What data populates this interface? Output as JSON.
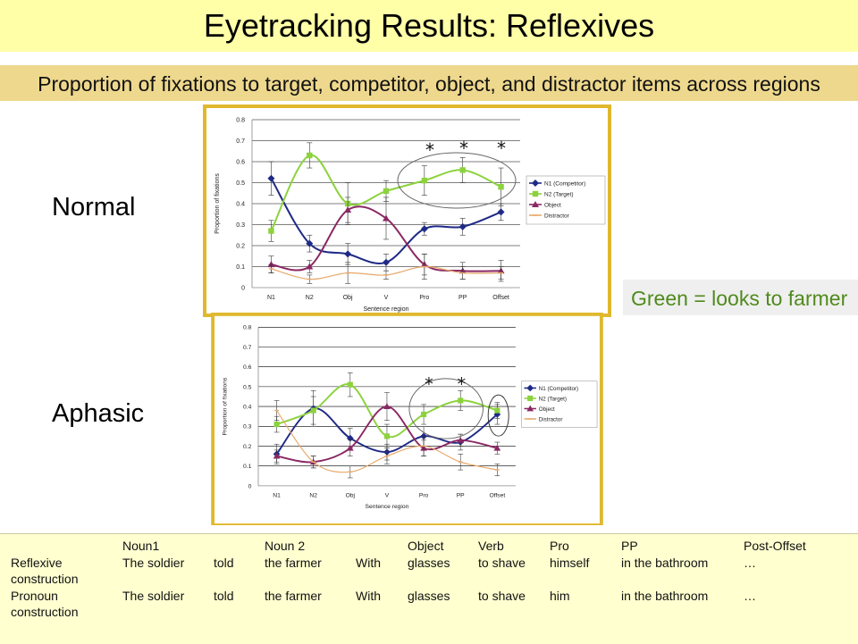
{
  "title": "Eyetracking Results:  Reflexives",
  "subtitle": "Proportion of fixations to target, competitor, object, and distractor items across regions",
  "labels": {
    "normal": "Normal",
    "aphasic": "Aphasic"
  },
  "note": "Green = looks to farmer",
  "colors": {
    "title_bg": "#ffffa8",
    "subtitle_bg": "#eed88d",
    "note_text": "#4f8a1c",
    "frame": "#e0b82e",
    "table_bg": "#ffffd0"
  },
  "table": {
    "headers": [
      "Noun1",
      "Noun 2",
      "Object",
      "Verb",
      "Pro",
      "PP",
      "Post-Offset"
    ],
    "rows": [
      {
        "label_1": "Reflexive",
        "label_2": "construction",
        "noun1": "The soldier",
        "told": "told",
        "noun2": "the farmer",
        "with": "With",
        "object": "glasses",
        "verb": "to shave",
        "pro": "himself",
        "pp": "in the bathroom",
        "post": "…"
      },
      {
        "label_1": "Pronoun",
        "label_2": "construction",
        "noun1": "The soldier",
        "told": "told",
        "noun2": "the farmer",
        "with": "With",
        "object": "glasses",
        "verb": "to shave",
        "pro": "him",
        "pp": "in the bathroom",
        "post": "…"
      }
    ]
  },
  "chart_data": [
    {
      "type": "line",
      "group": "Normal",
      "categories": [
        "N1",
        "N2",
        "Obj",
        "V",
        "Pro",
        "PP",
        "Offset"
      ],
      "ylabel": "Proportion of fixations",
      "xlabel": "Sentence region",
      "ylim": [
        0,
        0.8
      ],
      "yticks": [
        "0",
        "0.1",
        "0.2",
        "0.3",
        "0.4",
        "0.5",
        "0.6",
        "0.7",
        "0.8"
      ],
      "grid": true,
      "legend": "right",
      "significance_markers": [
        "*",
        "*",
        "*"
      ],
      "series": [
        {
          "name": "N1 (Competitor)",
          "color": "#1f2a86",
          "marker": "diamond",
          "values": [
            0.52,
            0.21,
            0.16,
            0.12,
            0.28,
            0.29,
            0.36
          ],
          "err": [
            0.08,
            0.04,
            0.05,
            0.04,
            0.03,
            0.04,
            0.04
          ]
        },
        {
          "name": "N2 (Target)",
          "color": "#8cd23c",
          "marker": "square",
          "values": [
            0.27,
            0.63,
            0.4,
            0.46,
            0.51,
            0.56,
            0.48
          ],
          "err": [
            0.05,
            0.06,
            0.1,
            0.05,
            0.07,
            0.06,
            0.09
          ]
        },
        {
          "name": "Object",
          "color": "#8a2863",
          "marker": "triangle",
          "values": [
            0.11,
            0.1,
            0.37,
            0.33,
            0.11,
            0.08,
            0.08
          ],
          "err": [
            0.04,
            0.03,
            0.06,
            0.1,
            0.05,
            0.04,
            0.05
          ]
        },
        {
          "name": "Distractor",
          "color": "#e7a86a",
          "marker": "line",
          "values": [
            0.09,
            0.04,
            0.07,
            0.06,
            0.1,
            0.07,
            0.07
          ],
          "err": [
            0.02,
            0.02,
            0.05,
            0.02,
            0.06,
            0.03,
            0.03
          ]
        }
      ]
    },
    {
      "type": "line",
      "group": "Aphasic",
      "categories": [
        "N1",
        "N2",
        "Obj",
        "V",
        "Pro",
        "PP",
        "Offset"
      ],
      "ylabel": "Proportion of fixations",
      "xlabel": "Sentence region",
      "ylim": [
        0,
        0.8
      ],
      "yticks": [
        "0",
        "0.1",
        "0.2",
        "0.3",
        "0.4",
        "0.5",
        "0.6",
        "0.7",
        "0.8"
      ],
      "grid": true,
      "legend": "right",
      "significance_markers": [
        "*",
        "*"
      ],
      "series": [
        {
          "name": "N1 (Competitor)",
          "color": "#1f2a86",
          "marker": "diamond",
          "values": [
            0.16,
            0.39,
            0.24,
            0.17,
            0.25,
            0.22,
            0.36
          ],
          "err": [
            0.05,
            0.09,
            0.05,
            0.04,
            0.05,
            0.04,
            0.05
          ]
        },
        {
          "name": "N2 (Target)",
          "color": "#8cd23c",
          "marker": "square",
          "values": [
            0.31,
            0.38,
            0.51,
            0.25,
            0.36,
            0.43,
            0.38
          ],
          "err": [
            0.04,
            0.07,
            0.06,
            0.06,
            0.05,
            0.05,
            0.04
          ]
        },
        {
          "name": "Object",
          "color": "#8a2863",
          "marker": "triangle",
          "values": [
            0.15,
            0.12,
            0.19,
            0.4,
            0.19,
            0.23,
            0.19
          ],
          "err": [
            0.03,
            0.03,
            0.04,
            0.07,
            0.04,
            0.03,
            0.03
          ]
        },
        {
          "name": "Distractor",
          "color": "#e7a86a",
          "marker": "line",
          "values": [
            0.38,
            0.12,
            0.07,
            0.15,
            0.2,
            0.12,
            0.08
          ],
          "err": [
            0.05,
            0.03,
            0.03,
            0.04,
            0.05,
            0.04,
            0.03
          ]
        }
      ]
    }
  ]
}
